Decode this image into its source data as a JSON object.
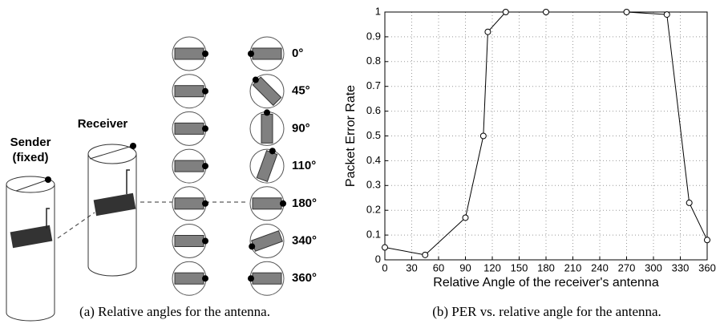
{
  "figure_a": {
    "sender_label": [
      "Sender",
      "(fixed)"
    ],
    "receiver_label": "Receiver",
    "angles": [
      "0°",
      "45°",
      "90°",
      "110°",
      "180°",
      "340°",
      "360°"
    ],
    "caption": "(a) Relative angles for the antenna."
  },
  "chart_data": {
    "type": "line",
    "xlabel": "Relative Angle of the receiver's antenna",
    "ylabel": "Packet Error Rate",
    "x": [
      0,
      45,
      90,
      110,
      115,
      135,
      180,
      270,
      315,
      340,
      360
    ],
    "values": [
      0.05,
      0.02,
      0.17,
      0.5,
      0.92,
      1,
      1,
      1,
      0.99,
      0.23,
      0.08
    ],
    "color": "#000000",
    "xlim": [
      0,
      360
    ],
    "xticks": [
      0,
      30,
      60,
      90,
      120,
      150,
      180,
      210,
      240,
      270,
      300,
      330,
      360
    ],
    "ylim": [
      0,
      1
    ],
    "yticks": [
      0,
      0.1,
      0.2,
      0.3,
      0.4,
      0.5,
      0.6,
      0.7,
      0.8,
      0.9,
      1
    ],
    "grid": true,
    "marker": "open-circle",
    "caption": "(b) PER vs. relative angle for the antenna."
  }
}
